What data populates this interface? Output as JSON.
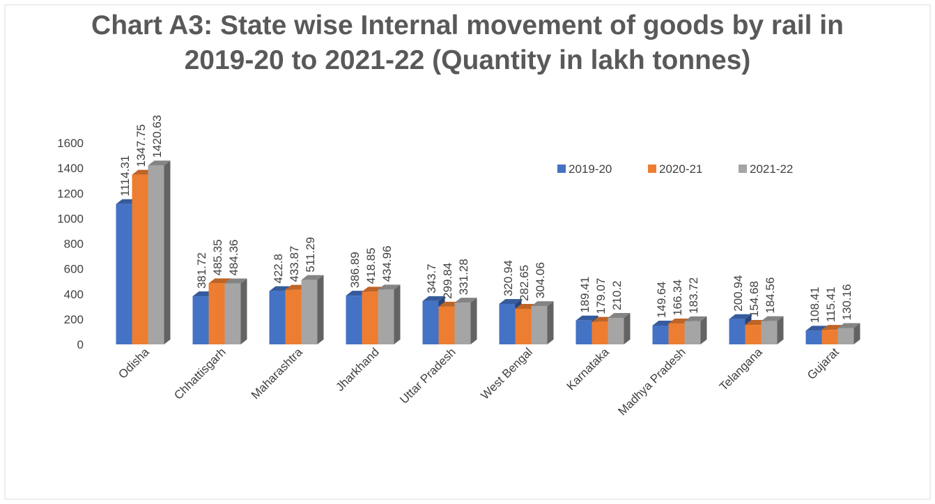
{
  "chart_data": {
    "type": "bar3d",
    "title": "Chart A3: State wise Internal movement of goods by rail in 2019-20 to 2021-22 (Quantity in lakh tonnes)",
    "categories": [
      "Odisha",
      "Chhattisgarh",
      "Maharashtra",
      "Jharkhand",
      "Uttar Pradesh",
      "West Bengal",
      "Karnataka",
      "Madhya Pradesh",
      "Telangana",
      "Gujarat"
    ],
    "series": [
      {
        "name": "2019-20",
        "color": "#4472c4",
        "values": [
          1114.31,
          381.72,
          422.8,
          386.89,
          343.7,
          320.94,
          189.41,
          149.64,
          200.94,
          108.41
        ]
      },
      {
        "name": "2020-21",
        "color": "#ed7d31",
        "values": [
          1347.75,
          485.35,
          433.87,
          418.85,
          299.84,
          282.65,
          179.07,
          166.34,
          154.68,
          115.41
        ]
      },
      {
        "name": "2021-22",
        "color": "#a5a5a5",
        "values": [
          1420.63,
          484.36,
          511.29,
          434.96,
          331.28,
          304.06,
          210.2,
          183.72,
          184.56,
          130.16
        ]
      }
    ],
    "ylim": [
      0,
      1600
    ],
    "yticks": [
      0,
      200,
      400,
      600,
      800,
      1000,
      1200,
      1400,
      1600
    ],
    "grid": false,
    "legend": "top-right"
  }
}
